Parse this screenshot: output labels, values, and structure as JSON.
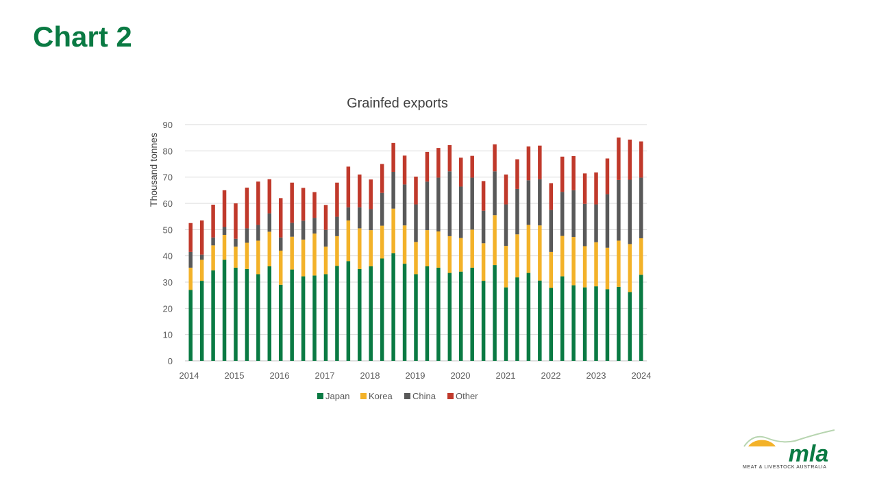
{
  "slide": {
    "title": "Chart 2"
  },
  "colors": {
    "Japan": "#0a7a43",
    "Korea": "#f3b229",
    "China": "#595959",
    "Other": "#c0392b",
    "title_green": "#0a7a43"
  },
  "logo": {
    "text": "mla",
    "caption": "MEAT & LIVESTOCK AUSTRALIA"
  },
  "chart_data": {
    "type": "bar",
    "stacked": true,
    "title": "Grainfed exports",
    "xlabel": "",
    "ylabel": "Thousand tonnes",
    "ylim": [
      0,
      90
    ],
    "yticks": [
      0,
      10,
      20,
      30,
      40,
      50,
      60,
      70,
      80,
      90
    ],
    "xtick_labels": [
      "2014",
      "2015",
      "2016",
      "2017",
      "2018",
      "2019",
      "2020",
      "2021",
      "2022",
      "2023",
      "2024"
    ],
    "grid": true,
    "legend_position": "bottom",
    "series": [
      {
        "name": "Japan",
        "values": [
          27.0,
          30.5,
          34.5,
          38.5,
          35.5,
          35.0,
          33.0,
          36.0,
          29.0,
          34.8,
          32.2,
          32.5,
          33.0,
          36.2,
          38.0,
          35.0,
          36.0,
          39.0,
          41.0,
          37.0,
          33.0,
          36.0,
          35.5,
          33.5,
          34.0,
          35.5,
          30.5,
          36.5,
          28.0,
          31.8,
          33.5,
          30.6,
          27.8,
          32.2,
          28.8,
          28.0,
          28.4,
          27.3,
          28.2,
          26.2,
          32.8
        ]
      },
      {
        "name": "Korea",
        "values": [
          8.5,
          8.0,
          9.5,
          9.5,
          8.0,
          10.0,
          12.8,
          13.2,
          13.0,
          12.5,
          14.0,
          16.0,
          10.5,
          11.3,
          15.5,
          15.5,
          13.8,
          12.5,
          17.0,
          14.6,
          12.3,
          13.8,
          13.8,
          14.0,
          12.8,
          14.5,
          14.3,
          19.0,
          15.8,
          16.4,
          18.3,
          21.0,
          13.7,
          15.4,
          18.4,
          15.7,
          16.8,
          15.8,
          17.6,
          18.3,
          13.9
        ]
      },
      {
        "name": "China",
        "values": [
          6.0,
          2.0,
          3.0,
          3.0,
          3.0,
          5.5,
          6.0,
          7.0,
          5.0,
          5.3,
          7.2,
          6.0,
          6.4,
          7.4,
          5.0,
          8.0,
          8.0,
          12.5,
          14.0,
          15.6,
          14.3,
          18.5,
          20.5,
          24.7,
          19.6,
          19.8,
          12.4,
          16.7,
          15.8,
          17.3,
          17.0,
          17.6,
          16.0,
          16.8,
          17.8,
          16.1,
          14.4,
          20.4,
          23.1,
          24.5,
          23.1
        ]
      },
      {
        "name": "Other",
        "values": [
          11.0,
          13.0,
          12.5,
          14.0,
          13.5,
          15.5,
          16.5,
          13.0,
          15.0,
          15.3,
          12.5,
          9.8,
          9.5,
          13.0,
          15.5,
          12.5,
          11.3,
          11.0,
          11.0,
          11.0,
          10.6,
          11.3,
          11.3,
          10.0,
          11.0,
          8.3,
          11.3,
          10.3,
          11.4,
          11.3,
          12.9,
          12.8,
          10.2,
          13.4,
          13.0,
          11.6,
          12.2,
          13.6,
          16.2,
          15.3,
          13.8
        ]
      }
    ]
  }
}
